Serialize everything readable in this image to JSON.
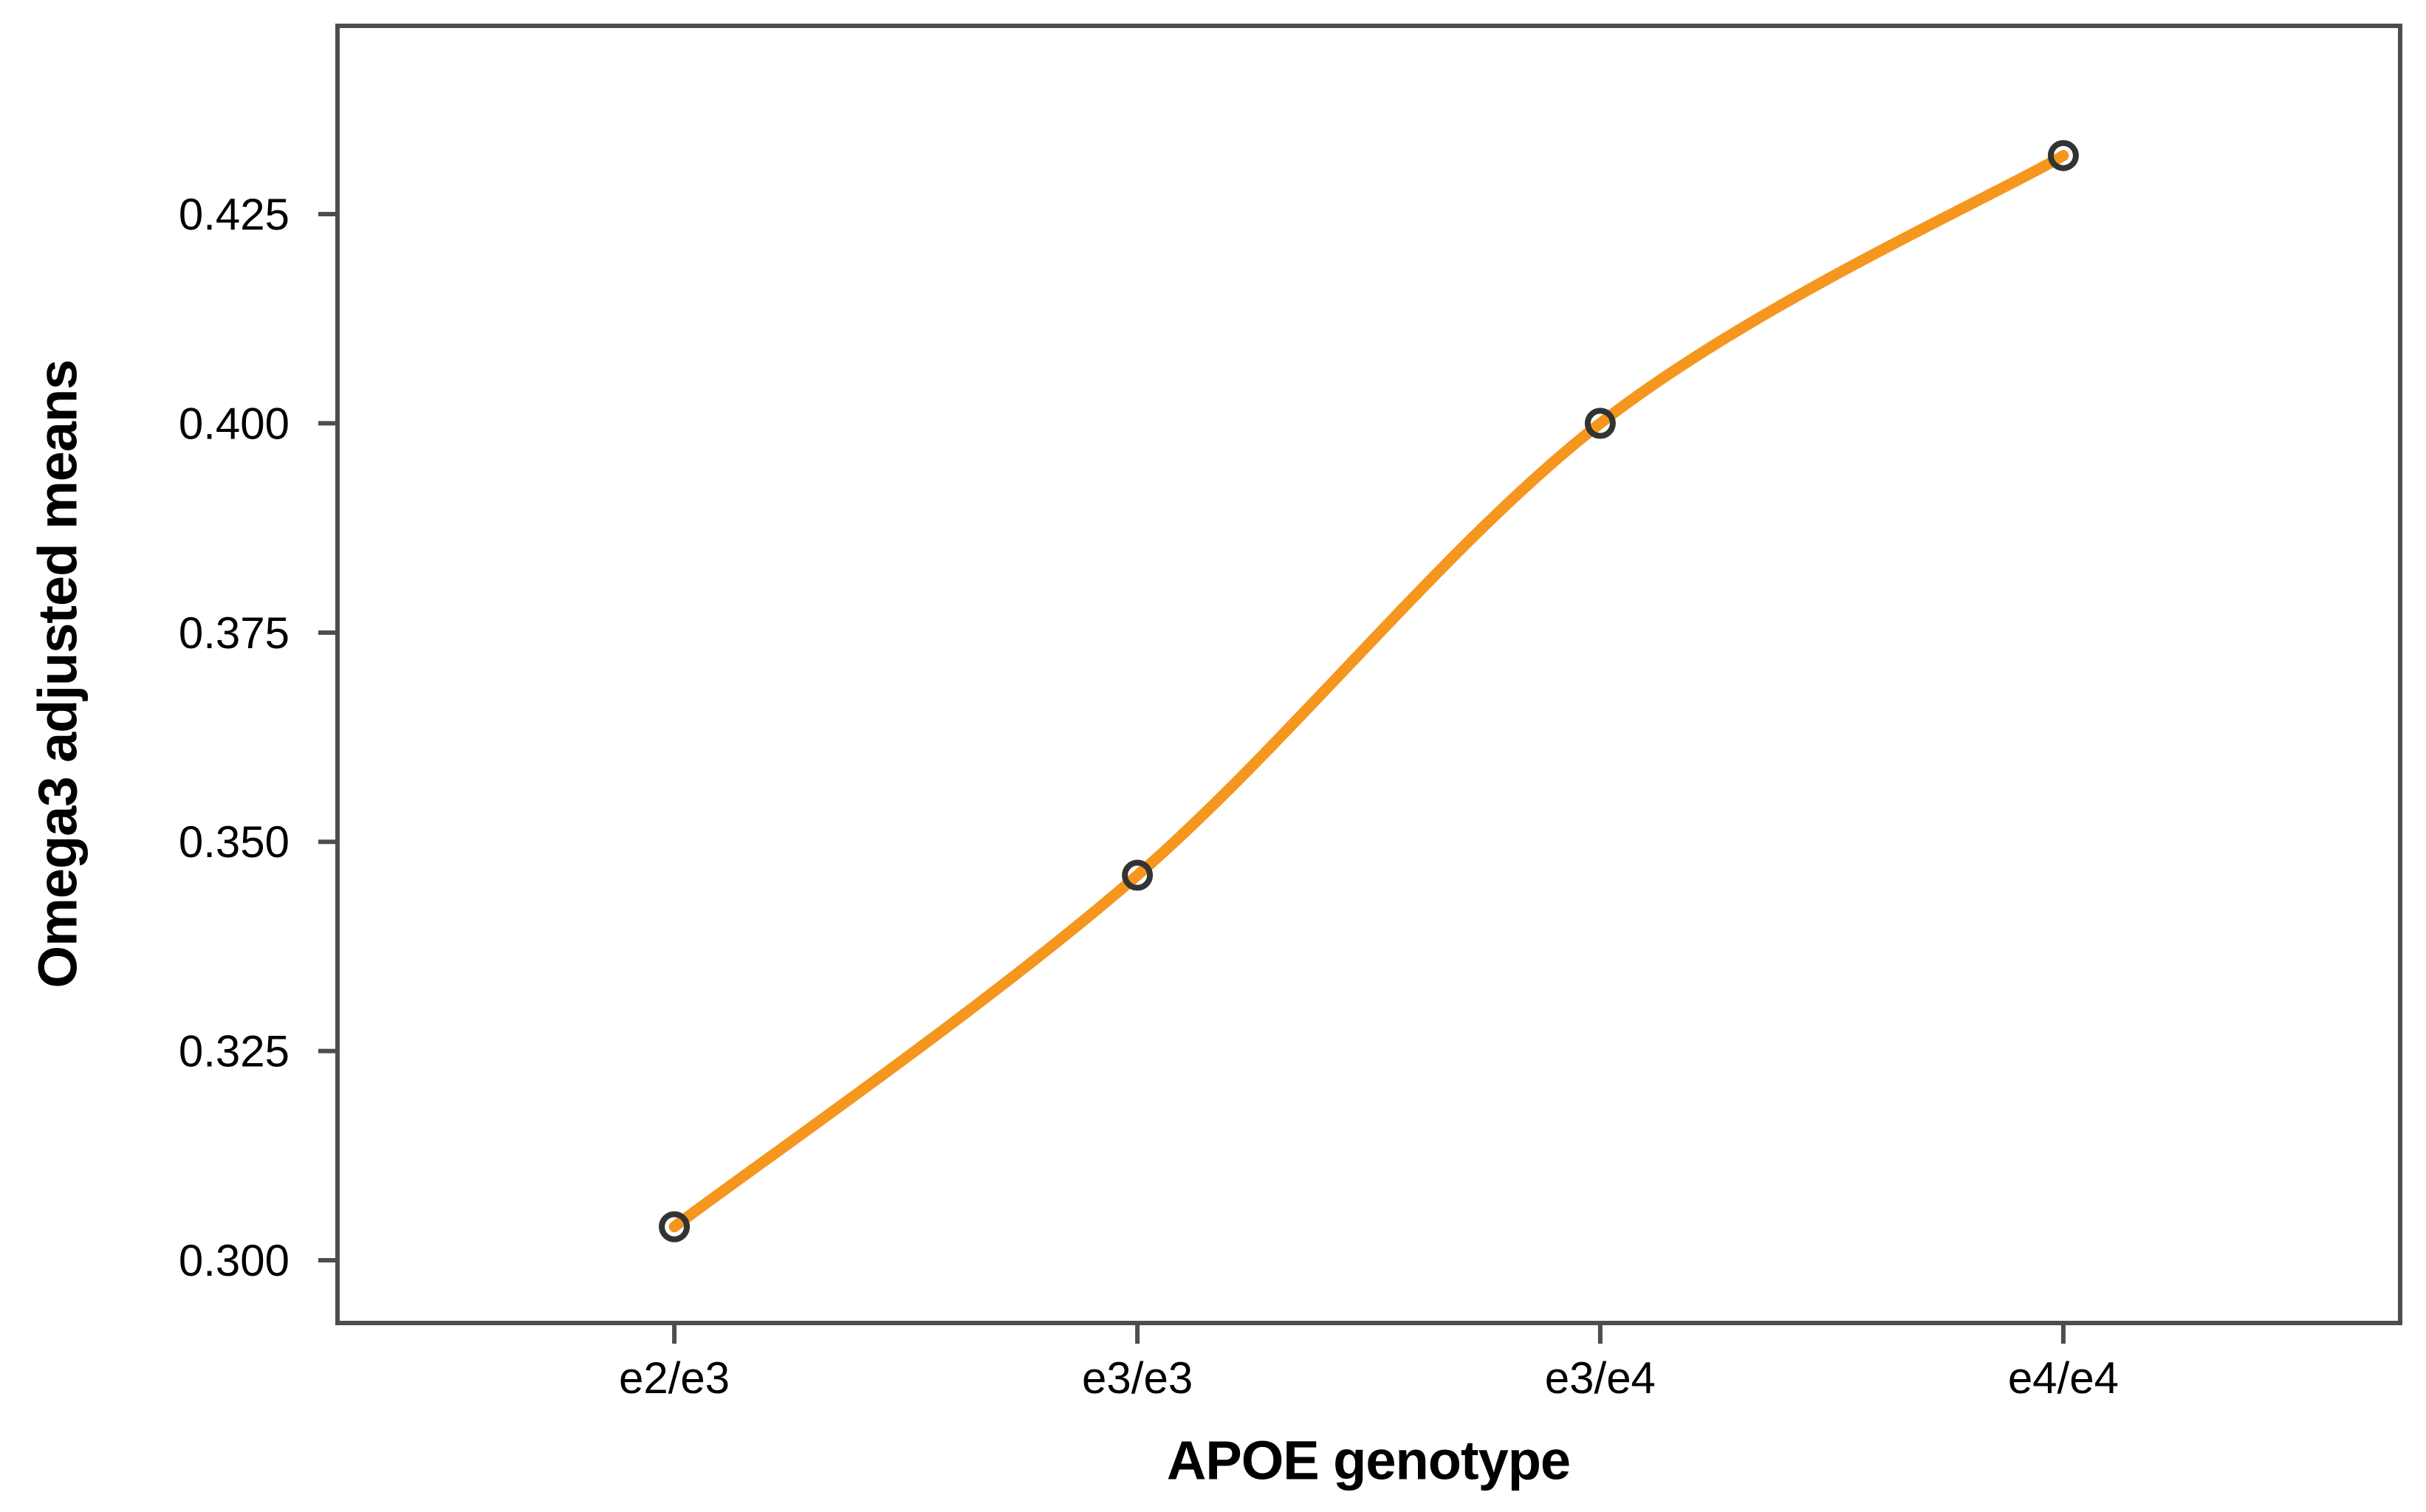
{
  "figure": {
    "background": "#ffffff"
  },
  "chart_data": {
    "type": "line",
    "title": "",
    "categories": [
      "e2/e3",
      "e3/e3",
      "e3/e4",
      "e4/e4"
    ],
    "series": [
      {
        "name": "Omega3 adjusted means",
        "values": [
          0.304,
          0.346,
          0.4,
          0.432
        ]
      }
    ],
    "xlabel": "APOE genotype",
    "ylabel": "Omega3 adjusted means",
    "y_ticks": [
      0.3,
      0.325,
      0.35,
      0.375,
      0.4,
      0.425
    ],
    "y_tick_labels": [
      "0.300",
      "0.325",
      "0.350",
      "0.375",
      "0.400",
      "0.425"
    ],
    "ylim": [
      0.2925,
      0.4475
    ],
    "grid": false,
    "legend": "none",
    "line_interpolation": "spline",
    "colors": {
      "line": "#F5961E",
      "marker_ring": "#333333",
      "frame": "#4D4D4D",
      "tick_text": "#000000"
    }
  }
}
